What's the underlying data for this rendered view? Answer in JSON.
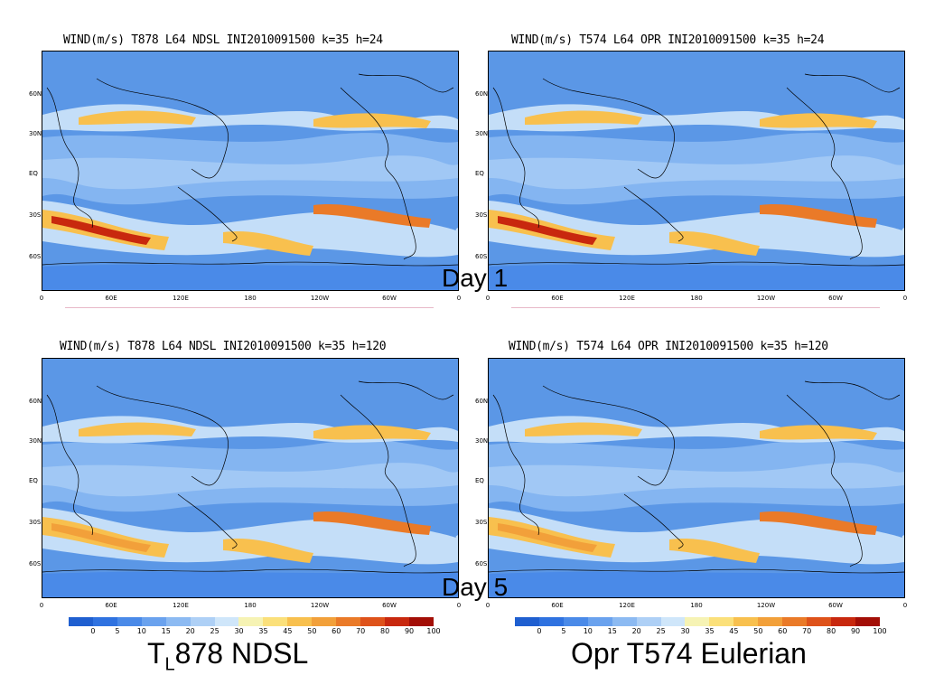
{
  "panels": [
    {
      "id": "tl",
      "title": "WIND(m/s) T878 L64 NDSL INI2010091500 k=35 h=24"
    },
    {
      "id": "tr",
      "title": "WIND(m/s) T574 L64 OPR INI2010091500 k=35 h=24"
    },
    {
      "id": "bl",
      "title": "WIND(m/s) T878 L64 NDSL INI2010091500 k=35 h=120"
    },
    {
      "id": "br",
      "title": "WIND(m/s) T574 L64 OPR INI2010091500 k=35 h=120"
    }
  ],
  "lat_ticks": [
    "60N",
    "30N",
    "EQ",
    "30S",
    "60S"
  ],
  "lon_ticks": [
    "0",
    "60E",
    "120E",
    "180",
    "120W",
    "60W",
    "0"
  ],
  "day_labels": {
    "day1": "Day 1",
    "day5": "Day 5"
  },
  "colorbar": {
    "labels": [
      "0",
      "5",
      "10",
      "15",
      "20",
      "25",
      "30",
      "35",
      "45",
      "50",
      "60",
      "70",
      "80",
      "90",
      "100"
    ],
    "colors": [
      "#1f5fd0",
      "#2f72e0",
      "#4a8ae8",
      "#6aa2ee",
      "#8cbaf2",
      "#aed0f6",
      "#cfe6fa",
      "#f6f3b4",
      "#fbe07a",
      "#f8c04e",
      "#f2a03a",
      "#ea7a28",
      "#de521a",
      "#c8280e",
      "#a30e06"
    ]
  },
  "captions": {
    "left_main": "T",
    "left_sub": "L",
    "left_rest": "878 NDSL",
    "right": "Opr T574 Eulerian"
  }
}
